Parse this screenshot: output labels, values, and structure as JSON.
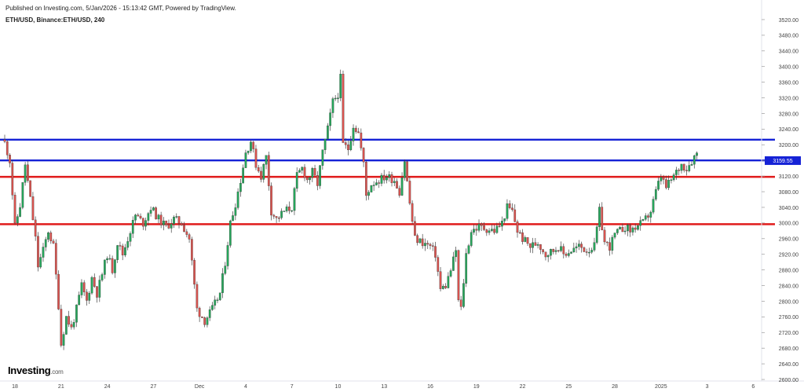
{
  "header": {
    "published": "Published on Investing.com, 5/Jan/2026 - 15:13:42 GMT, Powered by TradingView.",
    "symbol": "ETH/USD, Binance:ETH/USD, 240"
  },
  "logo": {
    "brand": "Investing",
    "suffix": ".com"
  },
  "chart_data": {
    "type": "candlestick",
    "timeframe": "240",
    "y_axis": {
      "range": [
        2580,
        3540
      ],
      "ticks": [
        "3520.00",
        "3480.00",
        "3440.00",
        "3400.00",
        "3360.00",
        "3320.00",
        "3280.00",
        "3240.00",
        "3200.00",
        "3160.00",
        "3120.00",
        "3080.00",
        "3040.00",
        "3000.00",
        "2960.00",
        "2920.00",
        "2880.00",
        "2840.00",
        "2800.00",
        "2760.00",
        "2720.00",
        "2680.00",
        "2640.00",
        "2600.00"
      ]
    },
    "x_axis": {
      "ticks": [
        {
          "label": "18",
          "bar": 4
        },
        {
          "label": "21",
          "bar": 22
        },
        {
          "label": "24",
          "bar": 40
        },
        {
          "label": "27",
          "bar": 58
        },
        {
          "label": "Dec",
          "bar": 76
        },
        {
          "label": "4",
          "bar": 94
        },
        {
          "label": "7",
          "bar": 112
        },
        {
          "label": "10",
          "bar": 130
        },
        {
          "label": "13",
          "bar": 148
        },
        {
          "label": "16",
          "bar": 166
        },
        {
          "label": "19",
          "bar": 184
        },
        {
          "label": "22",
          "bar": 202
        },
        {
          "label": "25",
          "bar": 220
        },
        {
          "label": "28",
          "bar": 238
        },
        {
          "label": "2025",
          "bar": 256
        },
        {
          "label": "3",
          "bar": 274
        },
        {
          "label": "6",
          "bar": 292
        }
      ]
    },
    "current_price": "3159.55",
    "levels": [
      {
        "value": 3213,
        "color": "#1522d6"
      },
      {
        "value": 3160,
        "color": "#1522d6"
      },
      {
        "value": 3118,
        "color": "#e01b1b"
      },
      {
        "value": 2997,
        "color": "#e01b1b"
      }
    ],
    "colors": {
      "up": "#26a65b",
      "down": "#d9534f"
    },
    "waypoints": [
      [
        0,
        3205
      ],
      [
        2,
        3160
      ],
      [
        4,
        2990
      ],
      [
        6,
        3045
      ],
      [
        8,
        3150
      ],
      [
        10,
        3060
      ],
      [
        12,
        2960
      ],
      [
        13,
        2890
      ],
      [
        15,
        2930
      ],
      [
        17,
        2980
      ],
      [
        19,
        2940
      ],
      [
        21,
        2790
      ],
      [
        22,
        2690
      ],
      [
        24,
        2760
      ],
      [
        26,
        2730
      ],
      [
        28,
        2780
      ],
      [
        30,
        2840
      ],
      [
        32,
        2800
      ],
      [
        34,
        2860
      ],
      [
        36,
        2820
      ],
      [
        38,
        2870
      ],
      [
        40,
        2920
      ],
      [
        42,
        2880
      ],
      [
        44,
        2950
      ],
      [
        46,
        2920
      ],
      [
        48,
        2960
      ],
      [
        51,
        3020
      ],
      [
        54,
        3000
      ],
      [
        57,
        3040
      ],
      [
        60,
        3010
      ],
      [
        63,
        2990
      ],
      [
        66,
        3010
      ],
      [
        69,
        3000
      ],
      [
        72,
        2960
      ],
      [
        75,
        2780
      ],
      [
        78,
        2750
      ],
      [
        81,
        2780
      ],
      [
        84,
        2820
      ],
      [
        86,
        2900
      ],
      [
        88,
        3000
      ],
      [
        90,
        3050
      ],
      [
        92,
        3110
      ],
      [
        94,
        3180
      ],
      [
        96,
        3210
      ],
      [
        98,
        3150
      ],
      [
        100,
        3120
      ],
      [
        102,
        3170
      ],
      [
        104,
        3030
      ],
      [
        106,
        3010
      ],
      [
        109,
        3030
      ],
      [
        112,
        3040
      ],
      [
        114,
        3120
      ],
      [
        116,
        3140
      ],
      [
        118,
        3110
      ],
      [
        120,
        3130
      ],
      [
        122,
        3100
      ],
      [
        124,
        3180
      ],
      [
        126,
        3240
      ],
      [
        128,
        3310
      ],
      [
        130,
        3330
      ],
      [
        131,
        3370
      ],
      [
        132,
        3200
      ],
      [
        134,
        3190
      ],
      [
        136,
        3250
      ],
      [
        138,
        3230
      ],
      [
        140,
        3150
      ],
      [
        141,
        3070
      ],
      [
        143,
        3100
      ],
      [
        146,
        3110
      ],
      [
        149,
        3120
      ],
      [
        152,
        3110
      ],
      [
        154,
        3080
      ],
      [
        156,
        3160
      ],
      [
        158,
        3050
      ],
      [
        160,
        2960
      ],
      [
        163,
        2950
      ],
      [
        166,
        2940
      ],
      [
        168,
        2920
      ],
      [
        170,
        2830
      ],
      [
        172,
        2840
      ],
      [
        174,
        2880
      ],
      [
        176,
        2930
      ],
      [
        177,
        2800
      ],
      [
        178,
        2780
      ],
      [
        180,
        2920
      ],
      [
        182,
        2980
      ],
      [
        185,
        2990
      ],
      [
        188,
        2985
      ],
      [
        191,
        2980
      ],
      [
        194,
        3000
      ],
      [
        196,
        3040
      ],
      [
        198,
        3030
      ],
      [
        200,
        2980
      ],
      [
        202,
        2960
      ],
      [
        205,
        2940
      ],
      [
        208,
        2950
      ],
      [
        211,
        2920
      ],
      [
        214,
        2930
      ],
      [
        216,
        2940
      ],
      [
        218,
        2920
      ],
      [
        221,
        2930
      ],
      [
        224,
        2940
      ],
      [
        227,
        2930
      ],
      [
        230,
        2940
      ],
      [
        232,
        3030
      ],
      [
        234,
        2950
      ],
      [
        236,
        2940
      ],
      [
        238,
        2970
      ],
      [
        240,
        2980
      ],
      [
        242,
        2990
      ],
      [
        244,
        2980
      ],
      [
        246,
        2990
      ],
      [
        249,
        3000
      ],
      [
        252,
        3030
      ],
      [
        254,
        3080
      ],
      [
        256,
        3120
      ],
      [
        258,
        3090
      ],
      [
        260,
        3110
      ],
      [
        262,
        3130
      ],
      [
        264,
        3150
      ],
      [
        266,
        3140
      ],
      [
        268,
        3160
      ],
      [
        270,
        3180
      ]
    ]
  }
}
